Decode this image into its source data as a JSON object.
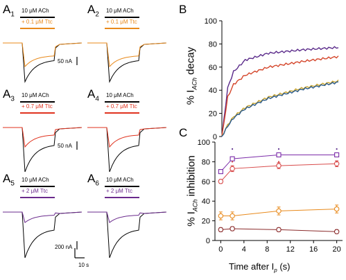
{
  "panels_A": [
    {
      "letter": "A",
      "sub": "1",
      "ach": "10 μM ACh",
      "ttc": "+ 0.1 μM Ttc",
      "ttc_color": "#e8891a",
      "scale": "50 nA"
    },
    {
      "letter": "A",
      "sub": "2",
      "ach": "10 μM ACh",
      "ttc": "+ 0.1 μM Ttc",
      "ttc_color": "#e8891a",
      "scale": ""
    },
    {
      "letter": "A",
      "sub": "3",
      "ach": "10 μM ACh",
      "ttc": "+ 0.7 μM Ttc",
      "ttc_color": "#e0321e",
      "scale": "50 nA"
    },
    {
      "letter": "A",
      "sub": "4",
      "ach": "10 μM ACh",
      "ttc": "+ 0.7 μM Ttc",
      "ttc_color": "#e0321e",
      "scale": ""
    },
    {
      "letter": "A",
      "sub": "5",
      "ach": "10 μM ACh",
      "ttc": "+ 2 μM Ttc",
      "ttc_color": "#6a2a8c",
      "scale": "200 nA"
    },
    {
      "letter": "A",
      "sub": "6",
      "ach": "10 μM ACh",
      "ttc": "+ 2 μM Ttc",
      "ttc_color": "#6a2a8c",
      "scale": ""
    }
  ],
  "time_scale": "10 s",
  "panel_B": {
    "letter": "B",
    "ylabel_pre": "% I",
    "ylabel_sub": "ACh",
    "ylabel_post": " decay",
    "yticks": [
      "0",
      "20",
      "40",
      "60",
      "80",
      "100"
    ]
  },
  "panel_C": {
    "letter": "C",
    "ylabel_pre": "% I",
    "ylabel_sub": "ACh",
    "ylabel_post": " inhibition",
    "yticks": [
      "0",
      "20",
      "40",
      "60",
      "80",
      "100"
    ],
    "xticks": [
      "0",
      "4",
      "8",
      "12",
      "16",
      "20"
    ],
    "xlabel_pre": "Time after I",
    "xlabel_sub": "p",
    "xlabel_post": " (s)"
  },
  "chart_data": [
    {
      "type": "line",
      "panel": "B",
      "ylim": [
        0,
        100
      ],
      "series": [
        {
          "color": "#5a2a8a",
          "x": [
            0,
            0.05,
            0.1,
            0.2,
            0.4,
            0.7,
            1.0
          ],
          "values": [
            0,
            42,
            56,
            66,
            72,
            75,
            77
          ]
        },
        {
          "color": "#d4452a",
          "x": [
            0,
            0.05,
            0.1,
            0.2,
            0.4,
            0.7,
            1.0
          ],
          "values": [
            0,
            34,
            45,
            53,
            60,
            65,
            69
          ]
        },
        {
          "color": "#c8a22a",
          "x": [
            0,
            0.05,
            0.1,
            0.2,
            0.4,
            0.7,
            1.0
          ],
          "values": [
            0,
            10,
            17,
            25,
            34,
            42,
            48
          ]
        },
        {
          "color": "#2a5a8a",
          "x": [
            0,
            0.05,
            0.1,
            0.2,
            0.4,
            0.7,
            1.0
          ],
          "values": [
            0,
            9,
            16,
            24,
            33,
            41,
            47
          ]
        }
      ]
    },
    {
      "type": "line",
      "panel": "C",
      "ylim": [
        0,
        100
      ],
      "xlim": [
        -1,
        21
      ],
      "series": [
        {
          "color": "#7a2aa8",
          "x": [
            0,
            2,
            10,
            20
          ],
          "values": [
            70,
            83,
            87,
            87
          ],
          "err": [
            2,
            2,
            2,
            2
          ],
          "marker": "square"
        },
        {
          "color": "#d84a4a",
          "x": [
            0,
            2,
            10,
            20
          ],
          "values": [
            60,
            73,
            76,
            78
          ],
          "err": [
            2,
            3,
            3,
            3
          ],
          "marker": "circle"
        },
        {
          "color": "#e8891a",
          "x": [
            0,
            2,
            10,
            20
          ],
          "values": [
            25,
            25,
            30,
            32
          ],
          "err": [
            4,
            4,
            4,
            4
          ],
          "marker": "circle"
        },
        {
          "color": "#8a2a2a",
          "x": [
            0,
            2,
            10,
            20
          ],
          "values": [
            11,
            12,
            11,
            9
          ],
          "err": [
            2,
            2,
            2,
            2
          ],
          "marker": "circle"
        }
      ],
      "significance_x": [
        2,
        10,
        20
      ]
    }
  ]
}
